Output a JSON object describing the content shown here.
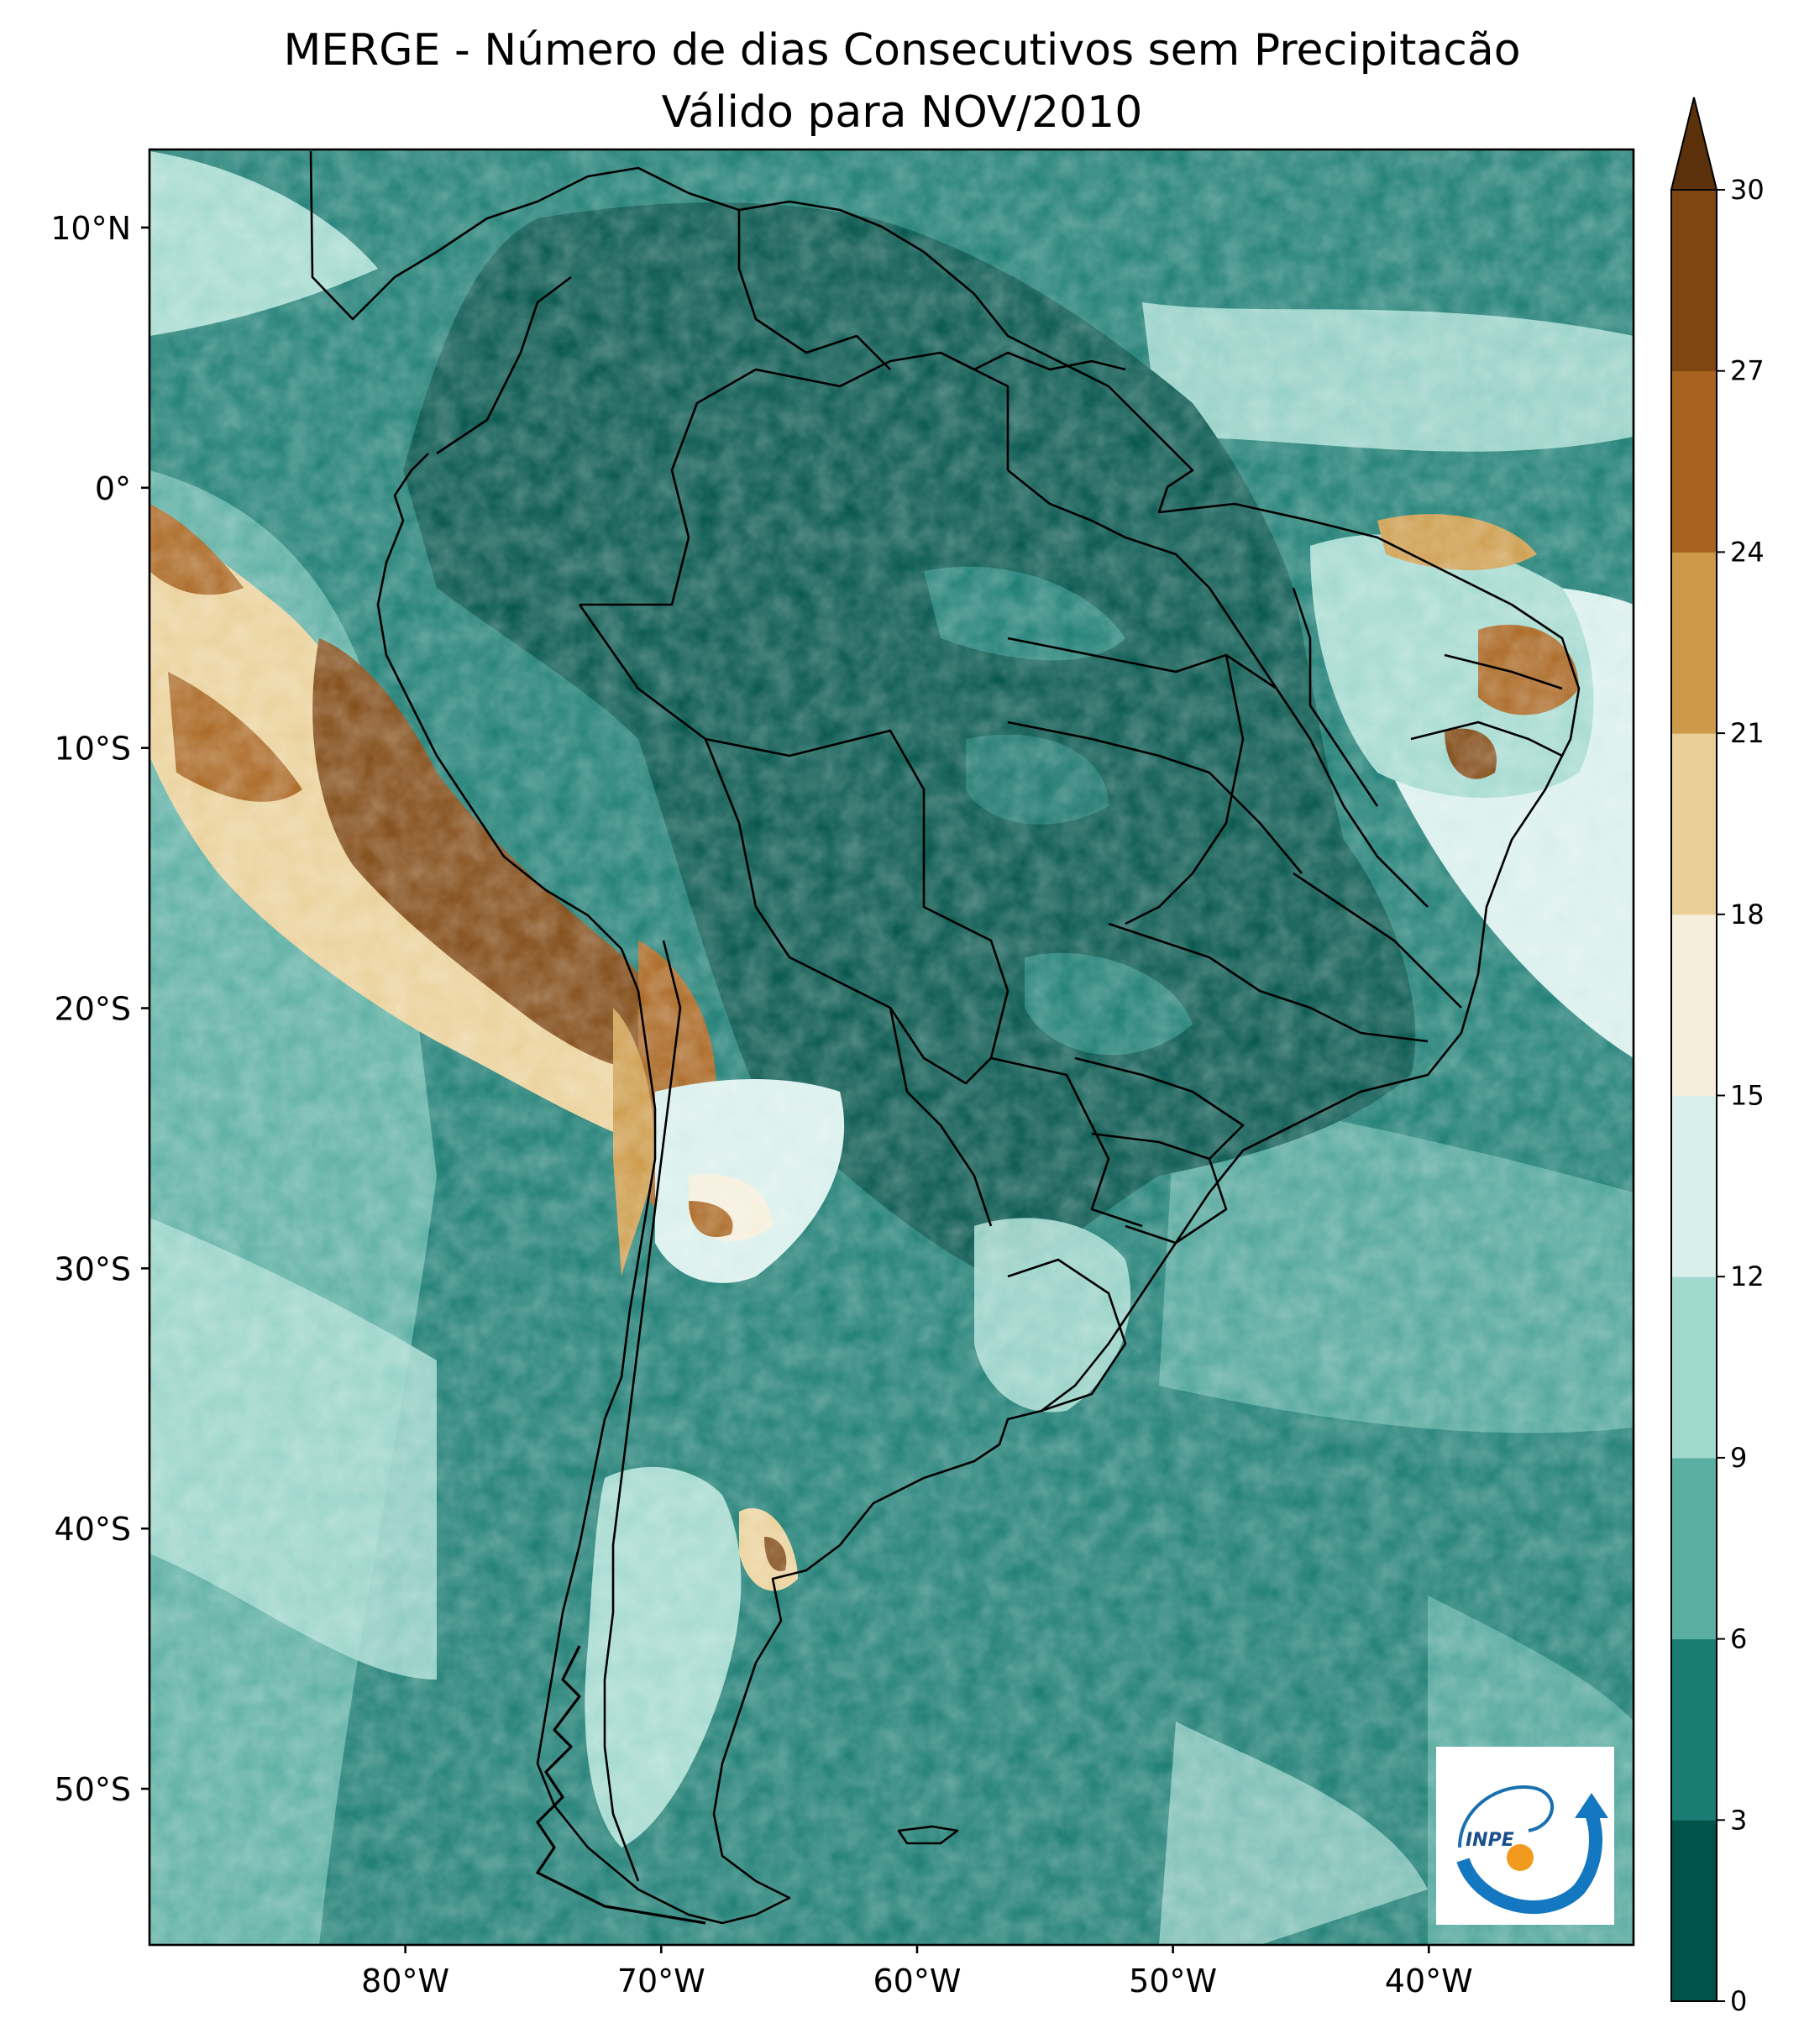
{
  "title": "MERGE - Número de dias Consecutivos sem Precipitacão",
  "subtitle": "Válido para NOV/2010",
  "map": {
    "lon_range": [
      -90,
      -32
    ],
    "lat_range": [
      -56,
      13
    ],
    "lat_ticks": [
      {
        "value": 10,
        "label": "10°N"
      },
      {
        "value": 0,
        "label": "0°"
      },
      {
        "value": -10,
        "label": "10°S"
      },
      {
        "value": -20,
        "label": "20°S"
      },
      {
        "value": -30,
        "label": "30°S"
      },
      {
        "value": -40,
        "label": "40°S"
      },
      {
        "value": -50,
        "label": "50°S"
      }
    ],
    "lon_ticks": [
      {
        "value": -80,
        "label": "80°W"
      },
      {
        "value": -70,
        "label": "70°W"
      },
      {
        "value": -60,
        "label": "60°W"
      },
      {
        "value": -50,
        "label": "50°W"
      },
      {
        "value": -40,
        "label": "40°W"
      }
    ]
  },
  "colorbar": {
    "levels": [
      0,
      3,
      6,
      9,
      12,
      15,
      18,
      21,
      24,
      27,
      30
    ],
    "labels": [
      "0",
      "3",
      "6",
      "9",
      "12",
      "15",
      "18",
      "21",
      "24",
      "27",
      "30"
    ],
    "colors": [
      "#01534a",
      "#1a7c72",
      "#5aaea2",
      "#a2d9cf",
      "#d8efec",
      "#f5eedc",
      "#ead098",
      "#cc9a48",
      "#a8641e",
      "#7e4610"
    ],
    "extend_color": "#5a310a",
    "extend": "max"
  },
  "logo": {
    "text": "INPE"
  }
}
